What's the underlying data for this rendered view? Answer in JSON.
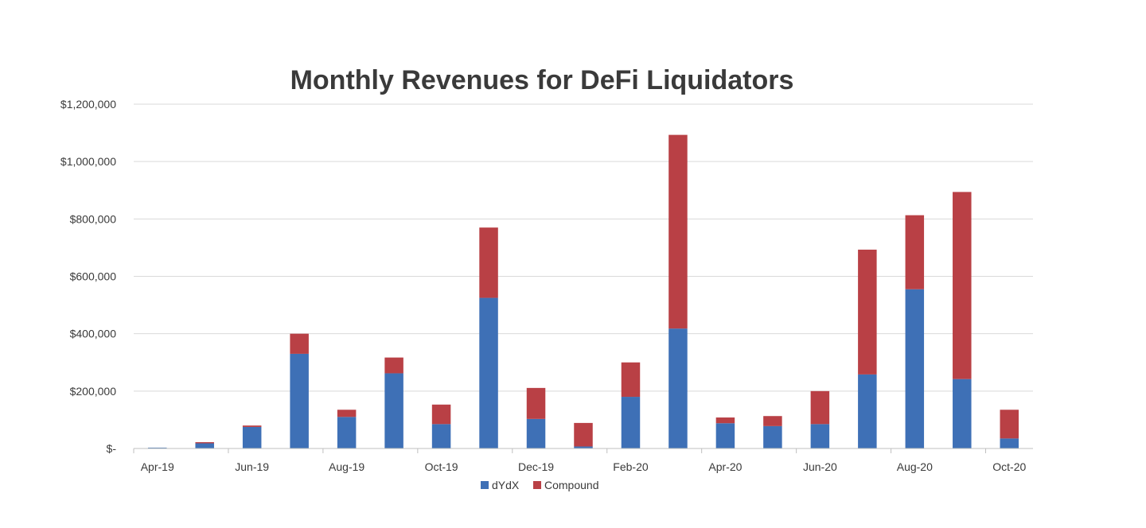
{
  "chart_data": {
    "type": "bar",
    "stacked": true,
    "title": "Monthly Revenues for DeFi Liquidators",
    "xlabel": "",
    "ylabel": "",
    "ylim": [
      0,
      1200000
    ],
    "yticks": [
      0,
      200000,
      400000,
      600000,
      800000,
      1000000,
      1200000
    ],
    "ytick_labels": [
      "$-",
      "$200,000",
      "$400,000",
      "$600,000",
      "$800,000",
      "$1,000,000",
      "$1,200,000"
    ],
    "grid": true,
    "legend_position": "bottom-center",
    "categories": [
      "Apr-19",
      "May-19",
      "Jun-19",
      "Jul-19",
      "Aug-19",
      "Sep-19",
      "Oct-19",
      "Nov-19",
      "Dec-19",
      "Jan-20",
      "Feb-20",
      "Mar-20",
      "Apr-20",
      "May-20",
      "Jun-20",
      "Jul-20",
      "Aug-20",
      "Sep-20",
      "Oct-20"
    ],
    "xtick_labels": [
      "Apr-19",
      "",
      "Jun-19",
      "",
      "Aug-19",
      "",
      "Oct-19",
      "",
      "Dec-19",
      "",
      "Feb-20",
      "",
      "Apr-20",
      "",
      "Jun-20",
      "",
      "Aug-20",
      "",
      "Oct-20"
    ],
    "series": [
      {
        "name": "dYdX",
        "legend_label": "dYdX",
        "color": "#3e70b6",
        "values": [
          3000,
          18000,
          75000,
          330000,
          110000,
          262000,
          85000,
          525000,
          103000,
          7000,
          180000,
          418000,
          88000,
          78000,
          85000,
          258000,
          555000,
          242000,
          35000
        ]
      },
      {
        "name": "Compound",
        "legend_label": "Compound",
        "color": "#b94045",
        "values": [
          0,
          4000,
          5000,
          70000,
          25000,
          55000,
          68000,
          245000,
          108000,
          82000,
          120000,
          675000,
          20000,
          35000,
          115000,
          435000,
          258000,
          652000,
          100000
        ]
      }
    ]
  }
}
